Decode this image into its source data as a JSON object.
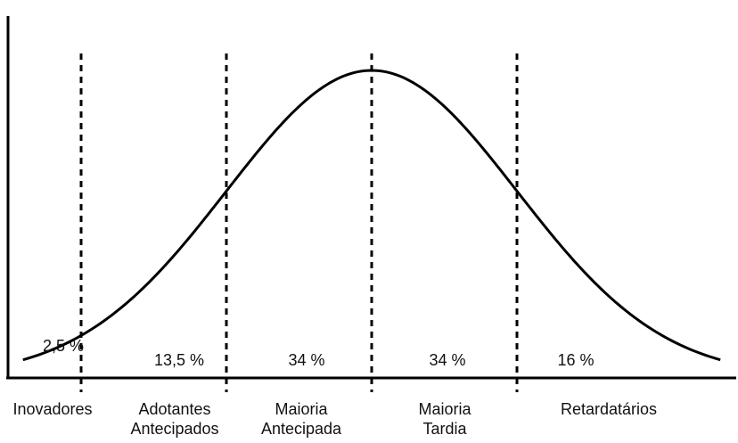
{
  "chart_data": {
    "type": "area",
    "title": "",
    "xlabel": "",
    "ylabel": "",
    "distribution": "normal",
    "x_unit": "standard deviations from mean",
    "xlim": [
      -2.4,
      2.4
    ],
    "boundaries_sd": [
      -2,
      -1,
      0,
      1
    ],
    "segments": [
      {
        "category": "Inovadores",
        "category_lines": [
          "Inovadores"
        ],
        "percent": 2.5,
        "percent_label": "2,5 %"
      },
      {
        "category": "Adotantes Antecipados",
        "category_lines": [
          "Adotantes",
          "Antecipados"
        ],
        "percent": 13.5,
        "percent_label": "13,5 %"
      },
      {
        "category": "Maioria Antecipada",
        "category_lines": [
          "Maioria",
          "Antecipada"
        ],
        "percent": 34,
        "percent_label": "34 %"
      },
      {
        "category": "Maioria Tardia",
        "category_lines": [
          "Maioria",
          "Tardia"
        ],
        "percent": 34,
        "percent_label": "34 %"
      },
      {
        "category": "Retardatários",
        "category_lines": [
          "Retardatários"
        ],
        "percent": 16,
        "percent_label": "16 %"
      }
    ],
    "grid": false,
    "legend": "none"
  }
}
